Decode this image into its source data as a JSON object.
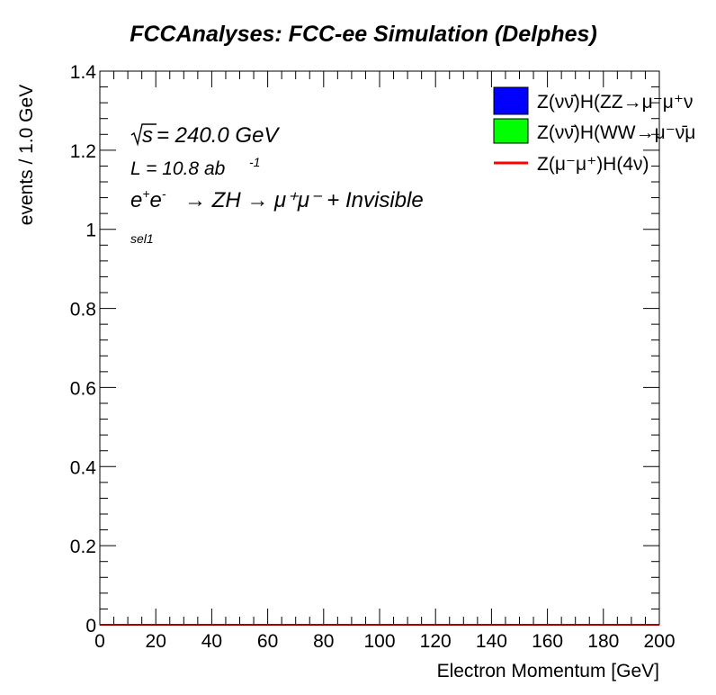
{
  "chart_data": {
    "type": "histogram",
    "title": "FCCAnalyses: FCC-ee Simulation (Delphes)",
    "xlabel": "Electron Momentum [GeV]",
    "ylabel": "events / 1.0 GeV",
    "xlim": [
      0,
      200
    ],
    "ylim": [
      0,
      1.4
    ],
    "xticks": [
      "0",
      "20",
      "40",
      "60",
      "80",
      "100",
      "120",
      "140",
      "160",
      "180",
      "200"
    ],
    "yticks": [
      "0",
      "0.2",
      "0.4",
      "0.6",
      "0.8",
      "1",
      "1.2",
      "1.4"
    ],
    "grid": false,
    "legend_position": "top-right",
    "annotations": {
      "sqrt_s": "= 240.0 GeV",
      "lumi_prefix": "L = 10.8 ab",
      "lumi_exp": "-1",
      "process": "→ ZH → μ⁺μ⁻ + Invisible",
      "selection": "sel1"
    },
    "series": [
      {
        "name": "Z(νν̄)H(ZZ→μ⁻μ⁺ν",
        "style": "fill",
        "color": "#0000ff",
        "values": [
          0
        ]
      },
      {
        "name": "Z(νν̄)H(WW→μ⁻ν̄μ",
        "style": "fill",
        "color": "#00ff00",
        "values": [
          0
        ]
      },
      {
        "name": "Z(μ⁻μ⁺)H(4ν)",
        "style": "line",
        "color": "#ff0000",
        "values": [
          0
        ]
      }
    ]
  }
}
